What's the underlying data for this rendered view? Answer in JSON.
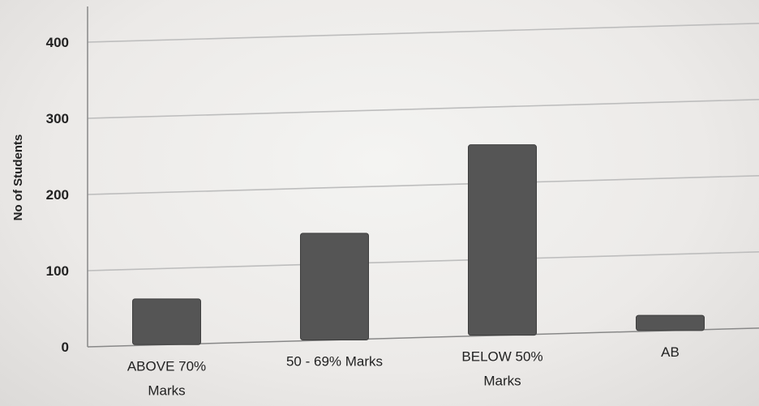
{
  "chart_data": {
    "type": "bar",
    "categories": [
      [
        "ABOVE 70%",
        "Marks"
      ],
      [
        "50 - 69% Marks"
      ],
      [
        "BELOW 50%",
        "Marks"
      ],
      [
        "AB"
      ]
    ],
    "values": [
      60,
      140,
      250,
      20
    ],
    "title": "",
    "xlabel": "",
    "ylabel": "No of Students",
    "ylim": [
      0,
      400
    ],
    "yticks": [
      0,
      100,
      200,
      300,
      400
    ],
    "grid": true,
    "bar_color": "#555555"
  }
}
